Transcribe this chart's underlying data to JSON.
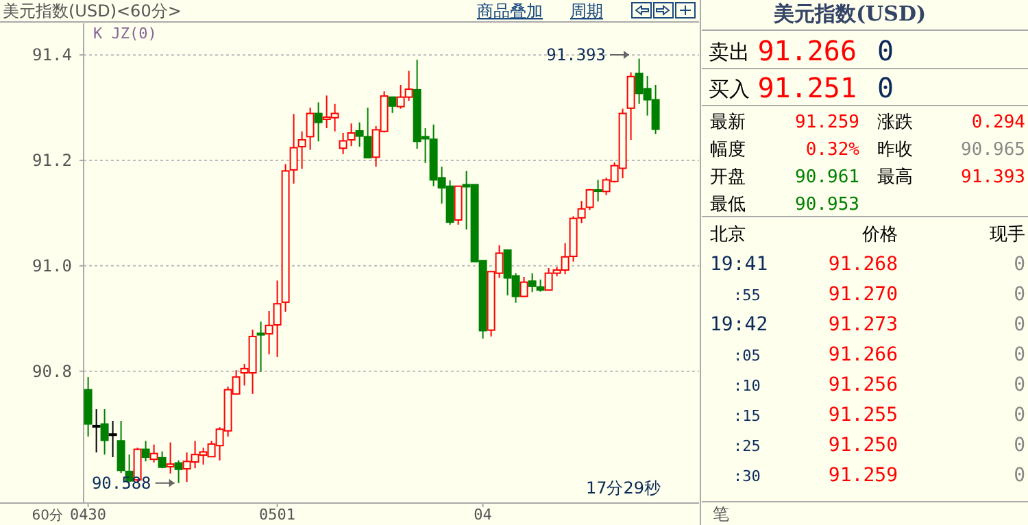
{
  "chart_data": [
    {
      "type": "candlestick",
      "title": "美元指数(USD)<60分>",
      "categories": [
        "0430",
        null,
        null,
        null,
        null,
        null,
        null,
        null,
        null,
        null,
        null,
        null,
        null,
        null,
        null,
        null,
        null,
        null,
        null,
        null,
        null,
        null,
        null,
        "0501",
        null,
        null,
        null,
        null,
        null,
        null,
        null,
        null,
        null,
        null,
        null,
        null,
        null,
        null,
        null,
        null,
        null,
        null,
        null,
        null,
        null,
        null,
        null,
        null,
        "04",
        null,
        null,
        null,
        null,
        null,
        null,
        null,
        null,
        null,
        null,
        null,
        null,
        null,
        null,
        null,
        null,
        null,
        null,
        null,
        null,
        null
      ],
      "ohlc": [
        [
          90.765,
          90.789,
          90.676,
          90.7
        ],
        [
          90.697,
          90.728,
          90.646,
          90.695
        ],
        [
          90.7,
          90.728,
          90.642,
          90.669
        ],
        [
          90.681,
          90.706,
          90.637,
          90.68
        ],
        [
          90.668,
          90.706,
          90.607,
          90.612
        ],
        [
          90.61,
          90.642,
          90.59,
          90.592
        ],
        [
          90.594,
          90.655,
          90.59,
          90.652
        ],
        [
          90.652,
          90.668,
          90.629,
          90.637
        ],
        [
          90.633,
          90.661,
          90.627,
          90.644
        ],
        [
          90.636,
          90.648,
          90.616,
          90.618
        ],
        [
          90.619,
          90.665,
          90.606,
          90.624
        ],
        [
          90.626,
          90.631,
          90.588,
          90.614
        ],
        [
          90.615,
          90.646,
          90.59,
          90.629
        ],
        [
          90.628,
          90.668,
          90.616,
          90.642
        ],
        [
          90.641,
          90.655,
          90.623,
          90.647
        ],
        [
          90.638,
          90.668,
          90.637,
          90.662
        ],
        [
          90.659,
          90.694,
          90.631,
          90.69
        ],
        [
          90.687,
          90.771,
          90.676,
          90.765
        ],
        [
          90.757,
          90.802,
          90.756,
          90.789
        ],
        [
          90.797,
          90.814,
          90.773,
          90.805
        ],
        [
          90.797,
          90.879,
          90.757,
          90.866
        ],
        [
          90.872,
          90.894,
          90.799,
          90.869
        ],
        [
          90.871,
          90.914,
          90.832,
          90.887
        ],
        [
          90.888,
          90.972,
          90.827,
          90.928
        ],
        [
          90.931,
          91.193,
          90.913,
          91.18
        ],
        [
          91.182,
          91.288,
          91.156,
          91.224
        ],
        [
          91.226,
          91.255,
          91.184,
          91.239
        ],
        [
          91.245,
          91.3,
          91.22,
          91.289
        ],
        [
          91.289,
          91.31,
          91.236,
          91.272
        ],
        [
          91.278,
          91.323,
          91.261,
          91.282
        ],
        [
          91.281,
          91.307,
          91.255,
          91.289
        ],
        [
          91.223,
          91.252,
          91.212,
          91.237
        ],
        [
          91.239,
          91.27,
          91.227,
          91.252
        ],
        [
          91.256,
          91.272,
          91.226,
          91.246
        ],
        [
          91.245,
          91.3,
          91.205,
          91.205
        ],
        [
          91.206,
          91.265,
          91.188,
          91.258
        ],
        [
          91.255,
          91.331,
          91.253,
          91.322
        ],
        [
          91.32,
          91.321,
          91.29,
          91.303
        ],
        [
          91.302,
          91.343,
          91.298,
          91.32
        ],
        [
          91.32,
          91.37,
          91.313,
          91.335
        ],
        [
          91.334,
          91.391,
          91.222,
          91.236
        ],
        [
          91.245,
          91.261,
          91.195,
          91.241
        ],
        [
          91.24,
          91.268,
          91.151,
          91.163
        ],
        [
          91.167,
          91.188,
          91.118,
          91.148
        ],
        [
          91.151,
          91.162,
          91.078,
          91.083
        ],
        [
          91.087,
          91.151,
          91.078,
          91.151
        ],
        [
          91.154,
          91.18,
          91.069,
          91.15
        ],
        [
          91.154,
          91.154,
          91.008,
          91.008
        ],
        [
          91.01,
          91.01,
          90.862,
          90.877
        ],
        [
          90.878,
          90.989,
          90.866,
          90.989
        ],
        [
          90.986,
          91.039,
          90.977,
          91.024
        ],
        [
          91.03,
          91.03,
          90.944,
          90.977
        ],
        [
          90.981,
          90.986,
          90.93,
          90.942
        ],
        [
          90.942,
          90.979,
          90.941,
          90.969
        ],
        [
          90.971,
          90.986,
          90.95,
          90.961
        ],
        [
          90.96,
          90.974,
          90.951,
          90.954
        ],
        [
          90.954,
          90.996,
          90.953,
          90.986
        ],
        [
          90.986,
          90.998,
          90.98,
          90.992
        ],
        [
          90.992,
          91.043,
          90.984,
          91.017
        ],
        [
          91.018,
          91.094,
          91.008,
          91.09
        ],
        [
          91.091,
          91.123,
          91.081,
          91.108
        ],
        [
          91.111,
          91.146,
          91.106,
          91.144
        ],
        [
          91.144,
          91.163,
          91.122,
          91.143
        ],
        [
          91.141,
          91.167,
          91.134,
          91.163
        ],
        [
          91.16,
          91.196,
          91.158,
          91.19
        ],
        [
          91.185,
          91.298,
          91.166,
          91.289
        ],
        [
          91.299,
          91.367,
          91.239,
          91.359
        ],
        [
          91.365,
          91.393,
          91.307,
          91.327
        ],
        [
          91.336,
          91.36,
          91.285,
          91.315
        ],
        [
          91.315,
          91.343,
          91.25,
          91.259
        ]
      ],
      "colors": [
        "#008000",
        "#000000",
        "#008000",
        "#000000",
        "#008000",
        "#008000",
        "#ff0000",
        "#008000",
        "#ff0000",
        "#008000",
        "#ff0000",
        "#008000",
        "#ff0000",
        "#ff0000",
        "#ff0000",
        "#ff0000",
        "#ff0000",
        "#ff0000",
        "#ff0000",
        "#ff0000",
        "#ff0000",
        "#008000",
        "#ff0000",
        "#ff0000",
        "#ff0000",
        "#ff0000",
        "#ff0000",
        "#ff0000",
        "#008000",
        "#ff0000",
        "#ff0000",
        "#ff0000",
        "#ff0000",
        "#008000",
        "#008000",
        "#ff0000",
        "#ff0000",
        "#008000",
        "#ff0000",
        "#ff0000",
        "#008000",
        "#008000",
        "#008000",
        "#008000",
        "#008000",
        "#ff0000",
        "#008000",
        "#008000",
        "#008000",
        "#ff0000",
        "#ff0000",
        "#008000",
        "#008000",
        "#ff0000",
        "#008000",
        "#008000",
        "#ff0000",
        "#ff0000",
        "#ff0000",
        "#ff0000",
        "#ff0000",
        "#ff0000",
        "#008000",
        "#ff0000",
        "#ff0000",
        "#ff0000",
        "#ff0000",
        "#008000",
        "#008000",
        "#008000"
      ],
      "ylim": [
        90.55,
        91.46
      ],
      "yticks": [
        {
          "value": 90.8,
          "label": "90.8"
        },
        {
          "value": 91,
          "label": "91.0"
        },
        {
          "value": 91.2,
          "label": "91.2"
        },
        {
          "value": 91.4,
          "label": "91.4"
        }
      ],
      "grid": "y",
      "annotations": [
        "K JZ(0)",
        {
          "text": "90.588",
          "y": 90.588
        },
        "91.393",
        "17分29秒",
        "商品叠加",
        "周期",
        "60分"
      ]
    },
    {
      "type": "other",
      "title": "美元指数(USD)",
      "annotations": [
        "卖出",
        "91.266",
        "0",
        "买入",
        "91.251",
        "0",
        "最新",
        "91.259",
        "涨跌",
        "0.294",
        "幅度",
        "0.32%",
        "昨收",
        "90.965",
        "开盘",
        "90.961",
        "最高",
        "91.393",
        "最低",
        "90.953",
        "北京",
        "价格",
        "现手",
        "19:41",
        "91.268",
        "0",
        ":55",
        "91.270",
        "0",
        "19:42",
        "91.273",
        "0",
        ":05",
        "91.266",
        "0",
        ":10",
        "91.256",
        "0",
        ":15",
        "91.255",
        "0",
        ":25",
        "91.250",
        "0",
        ":30",
        "91.259",
        "0",
        "笔"
      ]
    }
  ]
}
